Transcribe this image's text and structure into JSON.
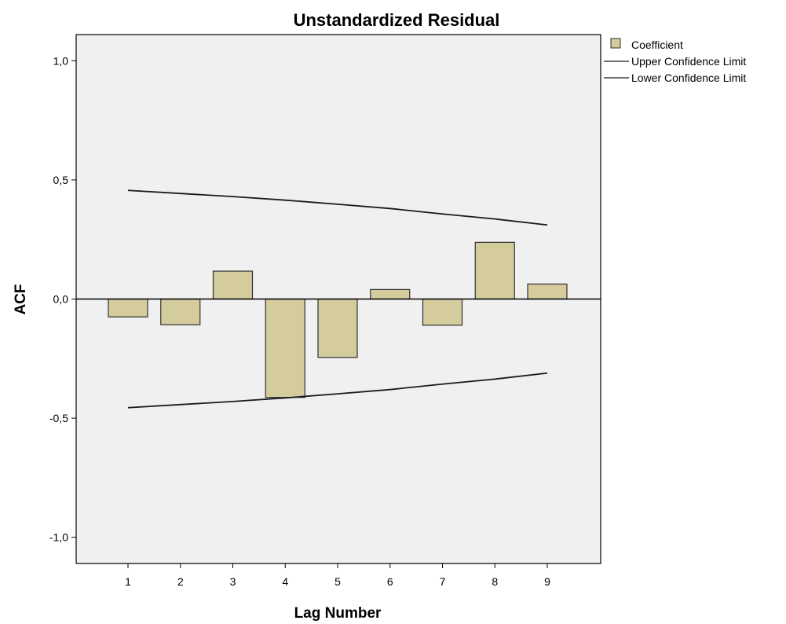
{
  "chart_data": {
    "type": "bar",
    "title": "Unstandardized Residual",
    "xlabel": "Lag Number",
    "ylabel": "ACF",
    "categories": [
      "1",
      "2",
      "3",
      "4",
      "5",
      "6",
      "7",
      "8",
      "9"
    ],
    "series": [
      {
        "name": "Coefficient",
        "type": "bar",
        "values": [
          -0.075,
          -0.108,
          0.117,
          -0.413,
          -0.245,
          0.04,
          -0.11,
          0.238,
          0.063
        ]
      },
      {
        "name": "Upper Confidence Limit",
        "type": "line",
        "values": [
          0.456,
          0.443,
          0.43,
          0.415,
          0.398,
          0.38,
          0.357,
          0.336,
          0.311
        ]
      },
      {
        "name": "Lower Confidence Limit",
        "type": "line",
        "values": [
          -0.456,
          -0.443,
          -0.43,
          -0.415,
          -0.398,
          -0.38,
          -0.357,
          -0.336,
          -0.311
        ]
      }
    ],
    "yticks": [
      "1,0",
      "0,5",
      "0,0",
      "-0,5",
      "-1,0"
    ],
    "ytick_values": [
      1.0,
      0.5,
      0.0,
      -0.5,
      -1.0
    ],
    "ylim": [
      -1.11,
      1.11
    ],
    "grid": false,
    "legend_position": "top-right",
    "colors": {
      "bar_fill": "#d5cc9d",
      "bar_stroke": "#2f2f2f",
      "plot_background": "#f0f0f0",
      "line": "#1a1a1a"
    }
  }
}
